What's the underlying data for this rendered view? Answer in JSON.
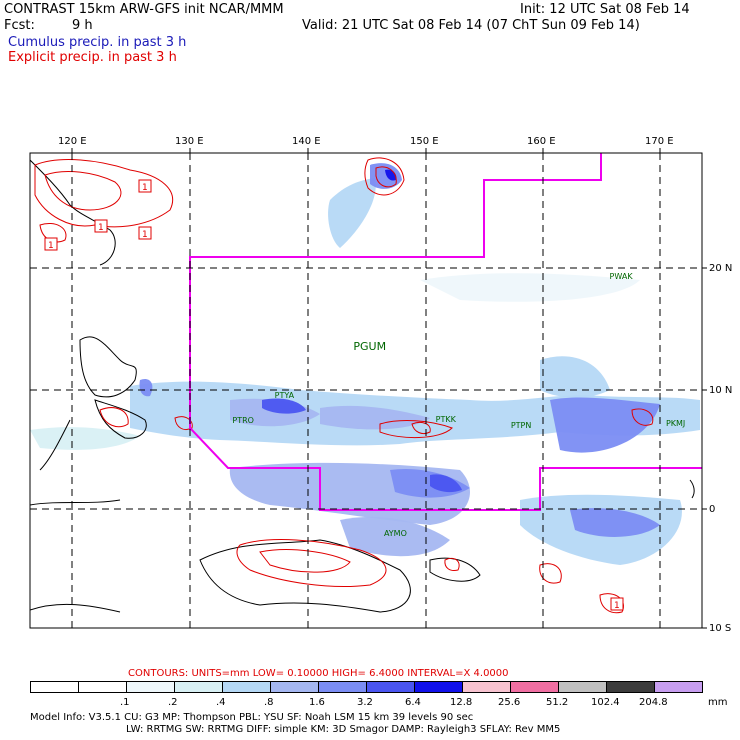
{
  "header": {
    "title": "CONTRAST 15km ARW-GFS init   NCAR/MMM",
    "init": "Init: 12 UTC Sat 08 Feb 14",
    "fcst_label": "Fcst:",
    "fcst_value": "9 h",
    "valid": "Valid: 21 UTC Sat 08 Feb 14 (07 ChT Sun 09 Feb 14)",
    "legend_cumulus": "Cumulus precip. in past 3 h",
    "legend_explicit": "Explicit precip. in past 3 h",
    "legend_cumulus_color": "#1a1ab8",
    "legend_explicit_color": "#e00000"
  },
  "map": {
    "lon_labels": [
      "120 E",
      "130 E",
      "140 E",
      "150 E",
      "160 E",
      "170 E"
    ],
    "lat_labels": [
      "20 N",
      "10 N",
      "0",
      "10 S"
    ],
    "stations": [
      {
        "id": "PWAK",
        "lon": 166.6,
        "lat": 19.3
      },
      {
        "id": "PGUM",
        "lon": 144.8,
        "lat": 13.5
      },
      {
        "id": "PTYA",
        "lon": 138.1,
        "lat": 9.5
      },
      {
        "id": "PTRO",
        "lon": 134.5,
        "lat": 7.4
      },
      {
        "id": "PTKK",
        "lon": 151.8,
        "lat": 7.5
      },
      {
        "id": "PTPN",
        "lon": 158.2,
        "lat": 7.0
      },
      {
        "id": "PKMJ",
        "lon": 171.4,
        "lat": 7.1
      },
      {
        "id": "AYMO",
        "lon": 147.4,
        "lat": -2.0
      }
    ],
    "boundary_color": "#ee00ee",
    "station_color": "#006600",
    "contour_color": "#e00000"
  },
  "contours": {
    "label": "CONTOURS:  UNITS=mm  LOW= 0.10000      HIGH=  6.4000      INTERVAL=X  4.0000",
    "box_label": "1"
  },
  "colorbar": {
    "unit": "mm",
    "ticks": [
      ".1",
      ".2",
      ".4",
      ".8",
      "1.6",
      "3.2",
      "6.4",
      "12.8",
      "25.6",
      "51.2",
      "102.4",
      "204.8"
    ],
    "colors": [
      "#ffffff",
      "#ffffff",
      "#eef7fb",
      "#d8f0f4",
      "#b5d8f5",
      "#a5b7f1",
      "#7b8df3",
      "#4a55f0",
      "#1010ea",
      "#f7c3d0",
      "#f06fa2",
      "#c0c0c0",
      "#3c3c3c",
      "#c79ef0"
    ]
  },
  "footer": {
    "line1": "Model Info: V3.5.1      CU: G3        MP: Thompson      PBL: YSU       SF: Noah LSM      15 km    39 levels    90 sec",
    "line2": "LW: RRTMG    SW: RRTMG   DIFF: simple KM: 3D Smagor DAMP: Rayleigh3  SFLAY: Rev MM5"
  }
}
